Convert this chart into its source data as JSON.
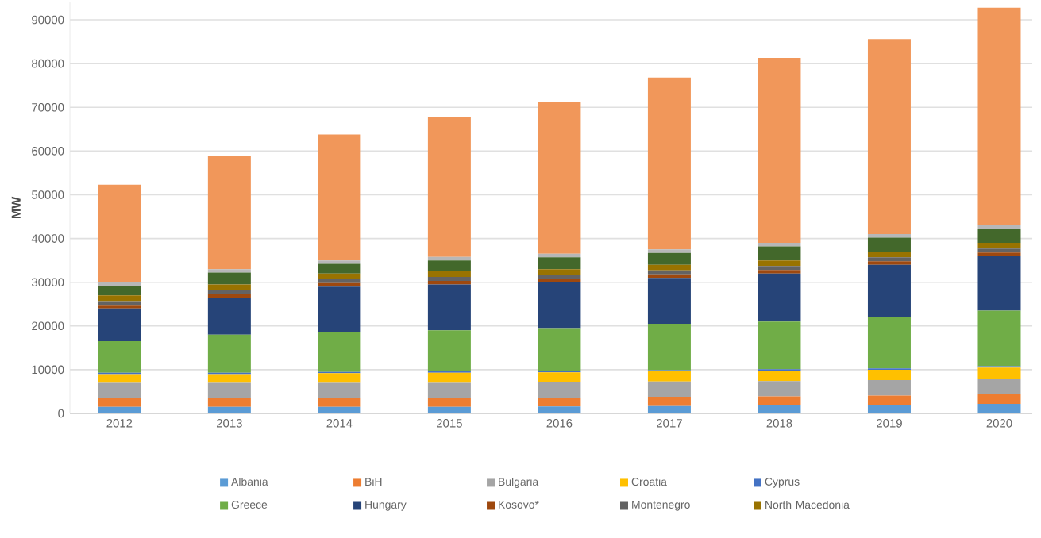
{
  "chart_data": {
    "type": "bar",
    "stacked": true,
    "ylabel": "MW",
    "categories": [
      "2012",
      "2013",
      "2014",
      "2015",
      "2016",
      "2017",
      "2018",
      "2019",
      "2020"
    ],
    "ylim": [
      0,
      94000
    ],
    "yticks": [
      0,
      10000,
      20000,
      30000,
      40000,
      50000,
      60000,
      70000,
      80000,
      90000
    ],
    "grid": "y",
    "legend": "bottom",
    "series": [
      {
        "name": "Albania",
        "color": "#5b9bd5",
        "values": [
          1500,
          1500,
          1500,
          1500,
          1600,
          1700,
          1800,
          2000,
          2200
        ]
      },
      {
        "name": "BiH",
        "color": "#ed7d31",
        "values": [
          2000,
          2000,
          2000,
          2000,
          2000,
          2100,
          2100,
          2100,
          2200
        ]
      },
      {
        "name": "Bulgaria",
        "color": "#a5a5a5",
        "values": [
          3500,
          3500,
          3500,
          3500,
          3500,
          3500,
          3500,
          3500,
          3600
        ]
      },
      {
        "name": "Croatia",
        "color": "#ffc000",
        "values": [
          2000,
          2000,
          2200,
          2300,
          2300,
          2300,
          2400,
          2400,
          2500
        ]
      },
      {
        "name": "Cyprus",
        "color": "#4472c4",
        "values": [
          300,
          300,
          300,
          300,
          300,
          300,
          300,
          300,
          300
        ]
      },
      {
        "name": "Greece",
        "color": "#70ad47",
        "values": [
          7200,
          8700,
          9000,
          9400,
          9800,
          10600,
          10900,
          11700,
          12700
        ]
      },
      {
        "name": "Hungary",
        "color": "#264478",
        "values": [
          7500,
          8500,
          10500,
          10500,
          10500,
          10500,
          11000,
          12000,
          12500
        ]
      },
      {
        "name": "Kosovo*",
        "color": "#9e480e",
        "values": [
          800,
          800,
          800,
          800,
          800,
          800,
          800,
          800,
          800
        ]
      },
      {
        "name": "Montenegro",
        "color": "#636363",
        "values": [
          900,
          900,
          900,
          900,
          900,
          900,
          900,
          900,
          900
        ]
      },
      {
        "name": "North Macedonia",
        "color": "#997300",
        "values": [
          1300,
          1300,
          1300,
          1300,
          1300,
          1300,
          1300,
          1300,
          1300
        ]
      },
      {
        "color": "#43682b",
        "values": [
          2200,
          2700,
          2200,
          2500,
          2700,
          2700,
          3200,
          3200,
          3200
        ]
      },
      {
        "color": "#b7b7b7",
        "values": [
          800,
          800,
          800,
          800,
          800,
          800,
          800,
          800,
          800
        ]
      },
      {
        "color": "#f1975a",
        "values": [
          22300,
          26000,
          28800,
          31900,
          34800,
          39300,
          42300,
          44600,
          49800
        ]
      }
    ]
  }
}
